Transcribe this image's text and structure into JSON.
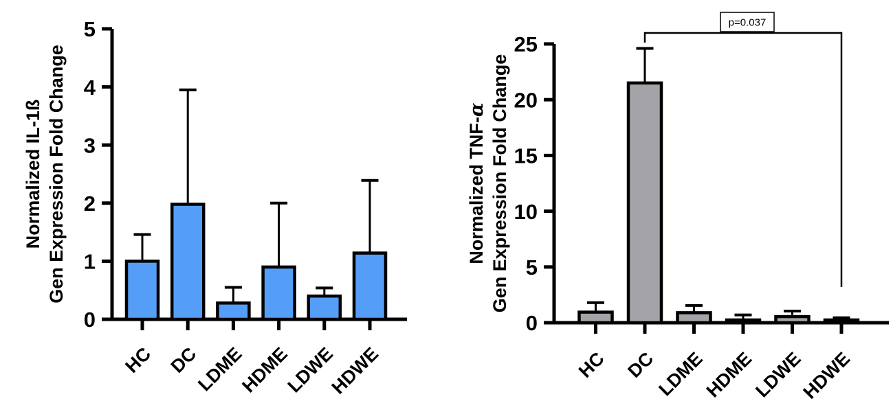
{
  "figure": {
    "background_color": "#ffffff",
    "axis_color": "#000000"
  },
  "chart_data": [
    {
      "id": "il1b",
      "type": "bar",
      "title": "",
      "ylabel_line1": "Normalized IL-1ß",
      "ylabel_line2": "Gen Expression Fold Change",
      "xlabel": "",
      "categories": [
        "HC",
        "DC",
        "LDME",
        "HDME",
        "LDWE",
        "HDWE"
      ],
      "values": [
        1.0,
        1.98,
        0.28,
        0.9,
        0.4,
        1.14
      ],
      "errors_upper": [
        0.46,
        1.97,
        0.27,
        1.1,
        0.14,
        1.25
      ],
      "ylim": [
        0,
        5
      ],
      "yticks": [
        0,
        1,
        2,
        3,
        4,
        5
      ],
      "bar_color": "#559EF7",
      "bar_edge_color": "#000000",
      "grid": false,
      "legend": "none"
    },
    {
      "id": "tnfa",
      "type": "bar",
      "title": "",
      "ylabel_line1": "Normalized TNF-α",
      "ylabel_line2": "Gen Expression Fold Change",
      "xlabel": "",
      "categories": [
        "HC",
        "DC",
        "LDME",
        "HDME",
        "LDWE",
        "HDWE"
      ],
      "values": [
        0.95,
        21.5,
        0.9,
        0.25,
        0.55,
        0.25
      ],
      "errors_upper": [
        0.85,
        3.1,
        0.65,
        0.45,
        0.5,
        0.2
      ],
      "ylim": [
        0,
        25
      ],
      "yticks": [
        0,
        5,
        10,
        15,
        20,
        25
      ],
      "bar_color": "#A4A3A7",
      "bar_edge_color": "#000000",
      "grid": false,
      "legend": "none",
      "annotation": {
        "type": "significance-bracket",
        "label": "p=0.037",
        "from_category": "DC",
        "to_category": "HDWE"
      }
    }
  ]
}
